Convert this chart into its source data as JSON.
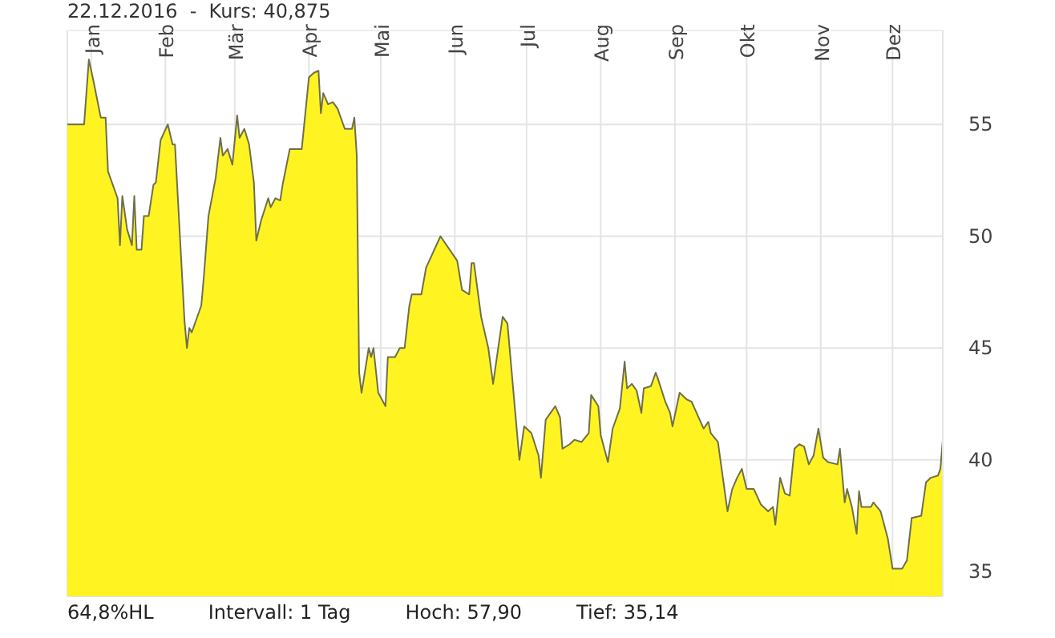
{
  "chart_data": {
    "type": "area",
    "title": "22.12.2016  -  Kurs: 40,875",
    "annotations": [
      "64,8%HL",
      "Intervall: 1 Tag",
      "Hoch: 57,90",
      "Tief: 35,14"
    ],
    "x": [
      "2015-12-22",
      "2015-12-29",
      "2015-12-31",
      "2016-01-02",
      "2016-01-05",
      "2016-01-07",
      "2016-01-08",
      "2016-01-12",
      "2016-01-13",
      "2016-01-14",
      "2016-01-16",
      "2016-01-18",
      "2016-01-19",
      "2016-01-20",
      "2016-01-22",
      "2016-01-23",
      "2016-01-25",
      "2016-01-27",
      "2016-01-28",
      "2016-01-30",
      "2016-02-02",
      "2016-02-04",
      "2016-02-05",
      "2016-02-09",
      "2016-02-10",
      "2016-02-11",
      "2016-02-12",
      "2016-02-16",
      "2016-02-17",
      "2016-02-19",
      "2016-02-22",
      "2016-02-24",
      "2016-02-25",
      "2016-02-27",
      "2016-02-29",
      "2016-03-02",
      "2016-03-03",
      "2016-03-05",
      "2016-03-07",
      "2016-03-09",
      "2016-03-10",
      "2016-03-12",
      "2016-03-15",
      "2016-03-16",
      "2016-03-18",
      "2016-03-20",
      "2016-03-21",
      "2016-03-24",
      "2016-03-29",
      "2016-04-01",
      "2016-04-03",
      "2016-04-05",
      "2016-04-06",
      "2016-04-07",
      "2016-04-09",
      "2016-04-11",
      "2016-04-13",
      "2016-04-14",
      "2016-04-16",
      "2016-04-19",
      "2016-04-20",
      "2016-04-21",
      "2016-04-22",
      "2016-04-23",
      "2016-04-26",
      "2016-04-27",
      "2016-04-28",
      "2016-04-30",
      "2016-05-03",
      "2016-05-04",
      "2016-05-07",
      "2016-05-09",
      "2016-05-11",
      "2016-05-13",
      "2016-05-14",
      "2016-05-18",
      "2016-05-20",
      "2016-05-26",
      "2016-06-02",
      "2016-06-04",
      "2016-06-07",
      "2016-06-08",
      "2016-06-09",
      "2016-06-12",
      "2016-06-15",
      "2016-06-17",
      "2016-06-21",
      "2016-06-23",
      "2016-06-28",
      "2016-06-30",
      "2016-07-03",
      "2016-07-06",
      "2016-07-07",
      "2016-07-09",
      "2016-07-13",
      "2016-07-15",
      "2016-07-16",
      "2016-07-19",
      "2016-07-21",
      "2016-07-24",
      "2016-07-27",
      "2016-07-28",
      "2016-07-31",
      "2016-08-01",
      "2016-08-04",
      "2016-08-06",
      "2016-08-09",
      "2016-08-11",
      "2016-08-12",
      "2016-08-14",
      "2016-08-16",
      "2016-08-18",
      "2016-08-19",
      "2016-08-22",
      "2016-08-24",
      "2016-08-25",
      "2016-08-28",
      "2016-08-30",
      "2016-08-31",
      "2016-09-03",
      "2016-09-06",
      "2016-09-08",
      "2016-09-13",
      "2016-09-15",
      "2016-09-16",
      "2016-09-19",
      "2016-09-23",
      "2016-09-25",
      "2016-09-27",
      "2016-09-29",
      "2016-10-01",
      "2016-10-04",
      "2016-10-07",
      "2016-10-10",
      "2016-10-12",
      "2016-10-13",
      "2016-10-15",
      "2016-10-17",
      "2016-10-19",
      "2016-10-21",
      "2016-10-23",
      "2016-10-25",
      "2016-10-27",
      "2016-10-29",
      "2016-10-31",
      "2016-11-02",
      "2016-11-04",
      "2016-11-08",
      "2016-11-09",
      "2016-11-11",
      "2016-11-12",
      "2016-11-14",
      "2016-11-16",
      "2016-11-17",
      "2016-11-18",
      "2016-11-22",
      "2016-11-23",
      "2016-11-26",
      "2016-11-29",
      "2016-12-01",
      "2016-12-05",
      "2016-12-07",
      "2016-12-09",
      "2016-12-13",
      "2016-12-15",
      "2016-12-17",
      "2016-12-20",
      "2016-12-21",
      "2016-12-22"
    ],
    "values": [
      55.0,
      55.0,
      57.9,
      56.9,
      55.3,
      55.3,
      52.9,
      51.7,
      49.6,
      51.8,
      50.3,
      49.6,
      51.8,
      49.4,
      49.4,
      50.9,
      50.9,
      52.3,
      52.4,
      54.3,
      55.0,
      54.1,
      54.1,
      46.2,
      45.0,
      45.9,
      45.7,
      46.9,
      48.1,
      50.9,
      52.6,
      54.4,
      53.6,
      53.9,
      53.2,
      55.4,
      54.4,
      54.8,
      54.1,
      52.4,
      49.8,
      50.7,
      51.7,
      51.3,
      51.7,
      51.6,
      52.3,
      53.9,
      53.9,
      57.1,
      57.3,
      57.4,
      55.5,
      56.4,
      55.9,
      56.0,
      55.7,
      55.4,
      54.8,
      54.8,
      55.3,
      53.6,
      43.9,
      43.0,
      45.0,
      44.6,
      45.0,
      43.0,
      42.4,
      44.6,
      44.6,
      45.0,
      45.0,
      46.9,
      47.4,
      47.4,
      48.6,
      50.0,
      48.9,
      47.6,
      47.4,
      48.8,
      48.8,
      46.4,
      45.0,
      43.4,
      46.4,
      46.1,
      40.0,
      41.5,
      41.2,
      40.2,
      39.2,
      41.8,
      42.4,
      41.9,
      40.5,
      40.7,
      40.9,
      40.8,
      41.2,
      42.9,
      42.4,
      41.1,
      39.9,
      41.4,
      42.3,
      44.4,
      43.2,
      43.4,
      43.1,
      42.1,
      43.2,
      43.3,
      43.9,
      43.6,
      42.6,
      42.1,
      41.5,
      43.0,
      42.7,
      42.6,
      41.4,
      41.7,
      41.2,
      40.8,
      37.7,
      38.7,
      39.2,
      39.6,
      38.7,
      38.7,
      38.0,
      37.7,
      37.9,
      37.1,
      39.2,
      38.5,
      38.4,
      40.5,
      40.7,
      40.6,
      39.8,
      40.2,
      41.4,
      40.1,
      39.9,
      39.8,
      40.5,
      38.1,
      38.7,
      37.9,
      36.7,
      38.6,
      37.9,
      37.9,
      38.1,
      37.7,
      36.5,
      35.14,
      35.14,
      35.5,
      37.4,
      37.5,
      39.0,
      39.2,
      39.3,
      39.6,
      40.875
    ],
    "color": "#fff314",
    "xlim": [
      "2015-12-22",
      "2016-12-22"
    ],
    "xticks": [
      {
        "value": "2016-01-01",
        "label": "Jan"
      },
      {
        "value": "2016-02-01",
        "label": "Feb"
      },
      {
        "value": "2016-03-01",
        "label": "Mär"
      },
      {
        "value": "2016-04-01",
        "label": "Apr"
      },
      {
        "value": "2016-05-01",
        "label": "Mai"
      },
      {
        "value": "2016-06-01",
        "label": "Jun"
      },
      {
        "value": "2016-07-01",
        "label": "Jul"
      },
      {
        "value": "2016-08-01",
        "label": "Aug"
      },
      {
        "value": "2016-09-01",
        "label": "Sep"
      },
      {
        "value": "2016-10-01",
        "label": "Okt"
      },
      {
        "value": "2016-11-01",
        "label": "Nov"
      },
      {
        "value": "2016-12-01",
        "label": "Dez"
      }
    ],
    "ylim": [
      33.9,
      59.2
    ],
    "yticks": [
      35,
      40,
      45,
      50,
      55
    ],
    "grid": true
  }
}
